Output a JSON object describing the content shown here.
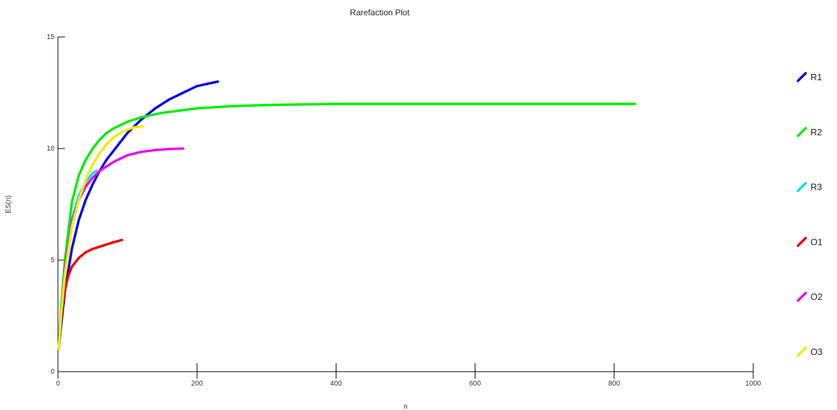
{
  "chart_data": {
    "type": "line",
    "title": "Rarefaction Plot",
    "xlabel": "n",
    "ylabel": "ES(n)",
    "xlim": [
      0,
      1000
    ],
    "ylim": [
      0,
      15
    ],
    "xticks": [
      0,
      200,
      400,
      600,
      800,
      1000
    ],
    "yticks": [
      0,
      5,
      10,
      15
    ],
    "grid": false,
    "legend_position": "right",
    "series": [
      {
        "name": "R1",
        "color": "#0000ee",
        "x": [
          1,
          5,
          10,
          20,
          30,
          40,
          50,
          60,
          70,
          80,
          90,
          100,
          120,
          140,
          160,
          180,
          200,
          230
        ],
        "y": [
          1,
          2.2,
          3.6,
          5.5,
          6.8,
          7.7,
          8.4,
          9.0,
          9.5,
          9.9,
          10.3,
          10.7,
          11.3,
          11.8,
          12.2,
          12.5,
          12.8,
          13.0
        ]
      },
      {
        "name": "R2",
        "color": "#00ee00",
        "x": [
          1,
          5,
          10,
          20,
          30,
          40,
          50,
          60,
          70,
          80,
          100,
          120,
          150,
          200,
          250,
          300,
          400,
          500,
          600,
          700,
          830
        ],
        "y": [
          1,
          3.0,
          5.0,
          7.6,
          8.8,
          9.5,
          10.0,
          10.4,
          10.7,
          10.9,
          11.2,
          11.4,
          11.6,
          11.8,
          11.9,
          11.95,
          12.0,
          12.0,
          12.0,
          12.0,
          12.0
        ]
      },
      {
        "name": "R3",
        "color": "#00e0ee",
        "x": [
          1,
          5,
          10,
          20,
          30,
          40,
          50,
          55
        ],
        "y": [
          1,
          2.6,
          4.6,
          6.8,
          7.9,
          8.5,
          8.9,
          9.0
        ]
      },
      {
        "name": "O1",
        "color": "#ee0000",
        "x": [
          1,
          5,
          10,
          15,
          20,
          30,
          40,
          50,
          60,
          70,
          80,
          92
        ],
        "y": [
          1,
          2.5,
          3.7,
          4.3,
          4.7,
          5.1,
          5.35,
          5.5,
          5.6,
          5.7,
          5.8,
          5.9
        ]
      },
      {
        "name": "O2",
        "color": "#ee00ee",
        "x": [
          1,
          5,
          10,
          20,
          30,
          40,
          50,
          60,
          80,
          100,
          120,
          140,
          160,
          180
        ],
        "y": [
          1,
          2.7,
          4.6,
          6.7,
          7.7,
          8.3,
          8.7,
          9.0,
          9.4,
          9.7,
          9.85,
          9.93,
          9.98,
          10.0
        ]
      },
      {
        "name": "O3",
        "color": "#eeee00",
        "x": [
          1,
          5,
          10,
          20,
          30,
          40,
          50,
          60,
          70,
          80,
          90,
          100,
          110,
          122
        ],
        "y": [
          1,
          2.7,
          4.4,
          6.5,
          7.7,
          8.6,
          9.3,
          9.8,
          10.2,
          10.5,
          10.7,
          10.85,
          10.95,
          11.0
        ]
      }
    ]
  }
}
